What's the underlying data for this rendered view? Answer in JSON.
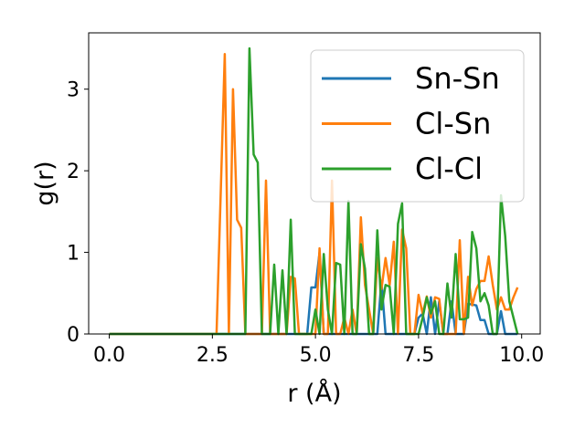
{
  "chart_data": {
    "type": "line",
    "title": "",
    "xlabel": "r (Å)",
    "ylabel": "g(r)",
    "xlim": [
      -0.5,
      10.45
    ],
    "ylim": [
      0,
      3.69
    ],
    "xticks": [
      0.0,
      2.5,
      5.0,
      7.5,
      10.0
    ],
    "xtick_labels": [
      "0.0",
      "2.5",
      "5.0",
      "7.5",
      "10.0"
    ],
    "yticks": [
      0,
      1,
      2,
      3
    ],
    "ytick_labels": [
      "0",
      "1",
      "2",
      "3"
    ],
    "grid": false,
    "legend_placement": "upper right",
    "x_start": 0.0,
    "x_step": 0.1,
    "series": [
      {
        "name": "Sn-Sn",
        "color": "#1f77b4",
        "values": [
          0,
          0,
          0,
          0,
          0,
          0,
          0,
          0,
          0,
          0,
          0,
          0,
          0,
          0,
          0,
          0,
          0,
          0,
          0,
          0,
          0,
          0,
          0,
          0,
          0,
          0,
          0,
          0,
          0,
          0,
          0,
          0,
          0,
          0,
          0,
          0,
          0,
          0,
          0,
          0,
          0,
          0,
          0,
          0,
          0,
          0,
          0,
          0,
          0,
          0.57,
          0.57,
          1.0,
          0,
          0,
          0,
          0,
          0,
          0,
          0,
          0,
          0,
          0,
          0,
          0,
          0,
          0,
          0.65,
          0,
          0,
          0,
          0,
          0,
          0,
          0,
          0,
          0.2,
          0.25,
          0,
          0.45,
          0,
          0.4,
          0,
          0,
          0.4,
          0,
          0,
          0,
          0.37,
          0.36,
          0.35,
          0.17,
          0.17,
          0,
          0,
          0,
          0.28,
          0,
          0,
          0,
          0
        ]
      },
      {
        "name": "Cl-Sn",
        "color": "#ff7f0e",
        "values": [
          0,
          0,
          0,
          0,
          0,
          0,
          0,
          0,
          0,
          0,
          0,
          0,
          0,
          0,
          0,
          0,
          0,
          0,
          0,
          0,
          0,
          0,
          0,
          0,
          0,
          0,
          0,
          1.7,
          3.43,
          0,
          3.0,
          1.4,
          1.3,
          0,
          0,
          0,
          0,
          0,
          1.88,
          0,
          0,
          0,
          0,
          0,
          0.7,
          0.68,
          0,
          0,
          0,
          0,
          0,
          1.05,
          0,
          0,
          1.88,
          0,
          0,
          0.2,
          0,
          0.3,
          0,
          1.43,
          0.6,
          0.3,
          0,
          0.93,
          0.55,
          0.93,
          0.6,
          1.13,
          0,
          1.28,
          1.05,
          0,
          0,
          0.48,
          0.25,
          0.46,
          0.2,
          0.45,
          0.43,
          0,
          0,
          0,
          0,
          1.15,
          0,
          0.7,
          0.35,
          0.55,
          0.65,
          0.65,
          0.95,
          0.6,
          0.3,
          0.45,
          0.3,
          0.3,
          0.45,
          0.57
        ]
      },
      {
        "name": "Cl-Cl",
        "color": "#2ca02c",
        "values": [
          0,
          0,
          0,
          0,
          0,
          0,
          0,
          0,
          0,
          0,
          0,
          0,
          0,
          0,
          0,
          0,
          0,
          0,
          0,
          0,
          0,
          0,
          0,
          0,
          0,
          0,
          0,
          0,
          0,
          0,
          0,
          0,
          0,
          0,
          3.5,
          2.2,
          2.1,
          0,
          0,
          0,
          0.85,
          0,
          0.78,
          0,
          1.4,
          0,
          0,
          0,
          0,
          0,
          0.3,
          0,
          0.98,
          0.3,
          0,
          0.87,
          0.85,
          0,
          1.63,
          0,
          0,
          1.1,
          0.8,
          0,
          0,
          1.27,
          0.3,
          0.6,
          0.58,
          0,
          1.35,
          1.6,
          0,
          0,
          0,
          0,
          0.2,
          0.45,
          0.25,
          0.4,
          0,
          0,
          0.62,
          0.2,
          0.98,
          0.18,
          0.18,
          0.2,
          1.25,
          1.05,
          0.4,
          0.5,
          0.35,
          0,
          0,
          1.7,
          1.2,
          0.4,
          0.2,
          0
        ]
      }
    ]
  }
}
